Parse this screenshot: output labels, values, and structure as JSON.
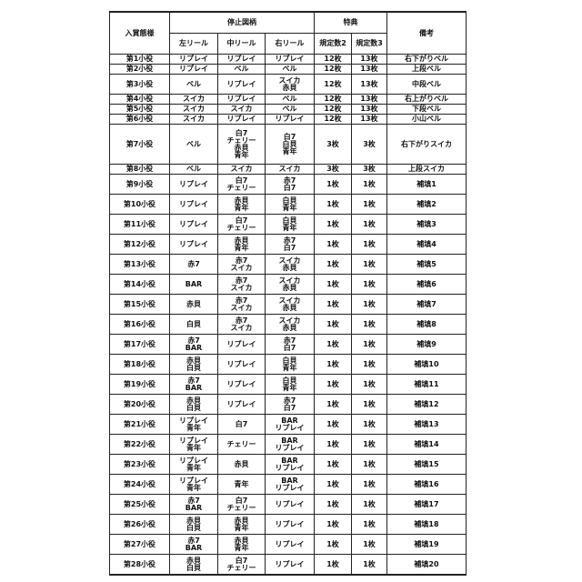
{
  "header": {
    "mode": "入賞態様",
    "stop_symbols": "停止図柄",
    "left_reel": "左リール",
    "center_reel": "中リール",
    "right_reel": "右リール",
    "bonus": "特典",
    "bet2": "規定数2",
    "bet3": "規定数3",
    "remarks": "備考"
  },
  "rows": [
    {
      "name": "第1小役",
      "left": "リプレイ",
      "center": "リプレイ",
      "right": "リプレイ",
      "bet2": "12枚",
      "bet3": "13枚",
      "remark": "右下がりベル"
    },
    {
      "name": "第2小役",
      "left": "リプレイ",
      "center": "ベル",
      "right": "ベル",
      "bet2": "12枚",
      "bet3": "13枚",
      "remark": "上段ベル"
    },
    {
      "name": "第3小役",
      "left": "ベル",
      "center": "リプレイ",
      "right": "スイカ\n赤貝",
      "bet2": "12枚",
      "bet3": "13枚",
      "remark": "中段ベル"
    },
    {
      "name": "第4小役",
      "left": "スイカ",
      "center": "リプレイ",
      "right": "ベル",
      "bet2": "12枚",
      "bet3": "13枚",
      "remark": "右上がりベル"
    },
    {
      "name": "第5小役",
      "left": "スイカ",
      "center": "スイカ",
      "right": "ベル",
      "bet2": "12枚",
      "bet3": "13枚",
      "remark": "下段ベル"
    },
    {
      "name": "第6小役",
      "left": "スイカ",
      "center": "リプレイ",
      "right": "リプレイ",
      "bet2": "12枚",
      "bet3": "13枚",
      "remark": "小山ベル"
    },
    {
      "name": "第7小役",
      "left": "ベル",
      "center": "白7\nチェリー\n赤貝\n青年",
      "right": "白7\n白貝\n青年",
      "bet2": "3枚",
      "bet3": "3枚",
      "remark": "右下がりスイカ"
    },
    {
      "name": "第8小役",
      "left": "ベル",
      "center": "スイカ",
      "right": "スイカ",
      "bet2": "3枚",
      "bet3": "3枚",
      "remark": "上段スイカ"
    },
    {
      "name": "第9小役",
      "left": "リプレイ",
      "center": "白7\nチェリー",
      "right": "赤7\n白7",
      "bet2": "1枚",
      "bet3": "1枚",
      "remark": "補填1"
    },
    {
      "name": "第10小役",
      "left": "リプレイ",
      "center": "赤貝\n青年",
      "right": "白貝\n青年",
      "bet2": "1枚",
      "bet3": "1枚",
      "remark": "補填2"
    },
    {
      "name": "第11小役",
      "left": "リプレイ",
      "center": "白7\nチェリー",
      "right": "白貝\n青年",
      "bet2": "1枚",
      "bet3": "1枚",
      "remark": "補填3"
    },
    {
      "name": "第12小役",
      "left": "リプレイ",
      "center": "赤貝\n青年",
      "right": "赤7\n白7",
      "bet2": "1枚",
      "bet3": "1枚",
      "remark": "補填4"
    },
    {
      "name": "第13小役",
      "left": "赤7",
      "center": "赤7\nスイカ",
      "right": "スイカ\n赤貝",
      "bet2": "1枚",
      "bet3": "1枚",
      "remark": "補填5"
    },
    {
      "name": "第14小役",
      "left": "BAR",
      "center": "赤7\nスイカ",
      "right": "スイカ\n赤貝",
      "bet2": "1枚",
      "bet3": "1枚",
      "remark": "補填6"
    },
    {
      "name": "第15小役",
      "left": "赤貝",
      "center": "赤7\nスイカ",
      "right": "スイカ\n赤貝",
      "bet2": "1枚",
      "bet3": "1枚",
      "remark": "補填7"
    },
    {
      "name": "第16小役",
      "left": "白貝",
      "center": "赤7\nスイカ",
      "right": "スイカ\n赤貝",
      "bet2": "1枚",
      "bet3": "1枚",
      "remark": "補填8"
    },
    {
      "name": "第17小役",
      "left": "赤7\nBAR",
      "center": "リプレイ",
      "right": "赤7\n白7",
      "bet2": "1枚",
      "bet3": "1枚",
      "remark": "補填9"
    },
    {
      "name": "第18小役",
      "left": "赤貝\n白貝",
      "center": "リプレイ",
      "right": "白貝\n青年",
      "bet2": "1枚",
      "bet3": "1枚",
      "remark": "補填10"
    },
    {
      "name": "第19小役",
      "left": "赤7\nBAR",
      "center": "リプレイ",
      "right": "白貝\n青年",
      "bet2": "1枚",
      "bet3": "1枚",
      "remark": "補填11"
    },
    {
      "name": "第20小役",
      "left": "赤貝\n白貝",
      "center": "リプレイ",
      "right": "赤7\n白7",
      "bet2": "1枚",
      "bet3": "1枚",
      "remark": "補填12"
    },
    {
      "name": "第21小役",
      "left": "リプレイ\n青年",
      "center": "白7",
      "right": "BAR\nリプレイ",
      "bet2": "1枚",
      "bet3": "1枚",
      "remark": "補填13"
    },
    {
      "name": "第22小役",
      "left": "リプレイ\n青年",
      "center": "チェリー",
      "right": "BAR\nリプレイ",
      "bet2": "1枚",
      "bet3": "1枚",
      "remark": "補填14"
    },
    {
      "name": "第23小役",
      "left": "リプレイ\n青年",
      "center": "赤貝",
      "right": "BAR\nリプレイ",
      "bet2": "1枚",
      "bet3": "1枚",
      "remark": "補填15"
    },
    {
      "name": "第24小役",
      "left": "リプレイ\n青年",
      "center": "青年",
      "right": "BAR\nリプレイ",
      "bet2": "1枚",
      "bet3": "1枚",
      "remark": "補填16"
    },
    {
      "name": "第25小役",
      "left": "赤7\nBAR",
      "center": "白7\nチェリー",
      "right": "リプレイ",
      "bet2": "1枚",
      "bet3": "1枚",
      "remark": "補填17"
    },
    {
      "name": "第26小役",
      "left": "赤貝\n白貝",
      "center": "赤貝\n青年",
      "right": "リプレイ",
      "bet2": "1枚",
      "bet3": "1枚",
      "remark": "補填18"
    },
    {
      "name": "第27小役",
      "left": "赤7\nBAR",
      "center": "赤貝\n青年",
      "right": "リプレイ",
      "bet2": "1枚",
      "bet3": "1枚",
      "remark": "補填19"
    },
    {
      "name": "第28小役",
      "left": "赤貝\n白貝",
      "center": "白7\nチェリー",
      "right": "リプレイ",
      "bet2": "1枚",
      "bet3": "1枚",
      "remark": "補填20"
    }
  ]
}
